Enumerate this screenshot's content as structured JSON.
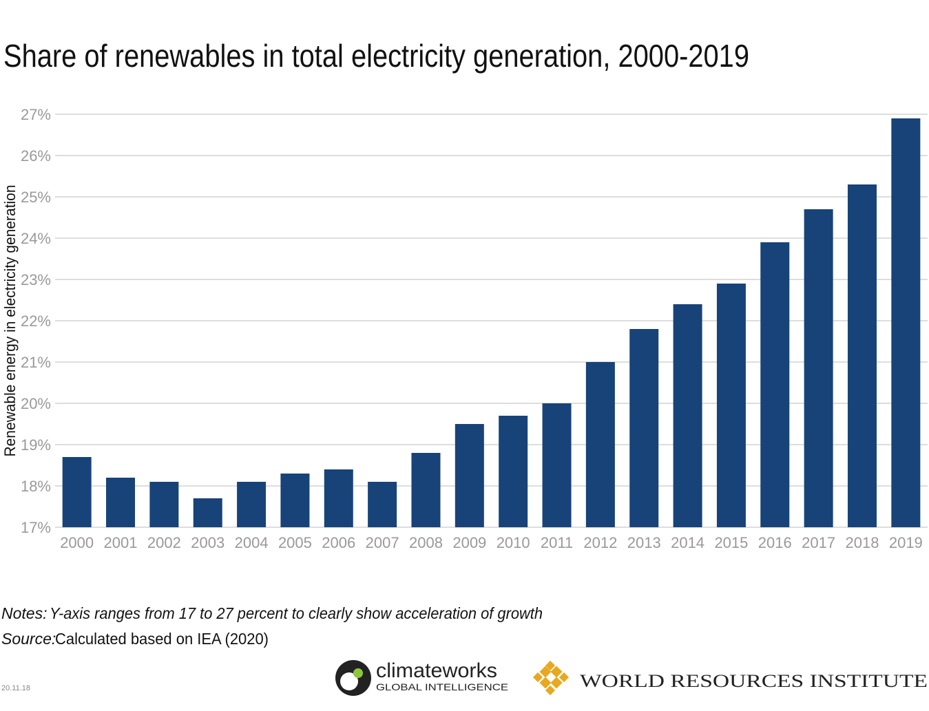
{
  "chart_data": {
    "type": "bar",
    "title": "Share of renewables in total electricity generation, 2000-2019",
    "y_label": "Renewable energy in electricity generation",
    "categories": [
      "2000",
      "2001",
      "2002",
      "2003",
      "2004",
      "2005",
      "2006",
      "2007",
      "2008",
      "2009",
      "2010",
      "2011",
      "2012",
      "2013",
      "2014",
      "2015",
      "2016",
      "2017",
      "2018",
      "2019"
    ],
    "values": [
      18.7,
      18.2,
      18.1,
      17.7,
      18.1,
      18.3,
      18.4,
      18.1,
      18.8,
      19.5,
      19.7,
      20.0,
      21.0,
      21.8,
      22.4,
      22.9,
      23.9,
      24.7,
      25.3,
      26.9
    ],
    "color": "#174379",
    "ylim": [
      17,
      27
    ],
    "yticks": [
      {
        "value": 17,
        "label": "17%"
      },
      {
        "value": 18,
        "label": "18%"
      },
      {
        "value": 19,
        "label": "19%"
      },
      {
        "value": 20,
        "label": "20%"
      },
      {
        "value": 21,
        "label": "21%"
      },
      {
        "value": 22,
        "label": "22%"
      },
      {
        "value": 23,
        "label": "23%"
      },
      {
        "value": 24,
        "label": "24%"
      },
      {
        "value": 25,
        "label": "25%"
      },
      {
        "value": 26,
        "label": "26%"
      },
      {
        "value": 27,
        "label": "27%"
      }
    ],
    "grid": true
  },
  "notes": {
    "label": "Notes:",
    "text": "Y-axis ranges from 17 to 27 percent to clearly show acceleration of growth"
  },
  "source": {
    "label": "Source:",
    "text": "Calculated based on IEA (2020)"
  },
  "date": "20.11.18",
  "logos": {
    "climateworks": "climateworks",
    "climateworks_sub": "GLOBAL INTELLIGENCE",
    "wri": "WORLD RESOURCES INSTITUTE"
  }
}
